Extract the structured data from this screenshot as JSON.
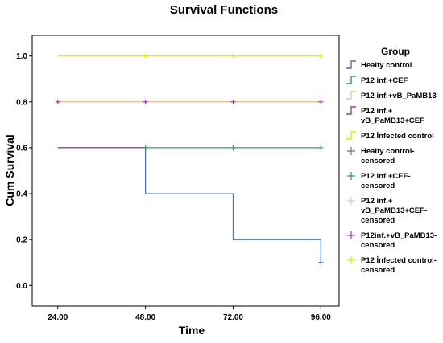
{
  "chart_data": {
    "type": "line",
    "title": "Survival Functions",
    "xlabel": "Time",
    "ylabel": "Cum Survival",
    "xlim": [
      17,
      101
    ],
    "ylim": [
      -0.09,
      1.09
    ],
    "x_ticks": [
      "24.00",
      "48.00",
      "72.00",
      "96.00"
    ],
    "x_tick_values": [
      24,
      48,
      72,
      96
    ],
    "y_ticks": [
      "0.0",
      "0.2",
      "0.4",
      "0.6",
      "0.8",
      "1.0"
    ],
    "y_tick_values": [
      0,
      0.2,
      0.4,
      0.6,
      0.8,
      1.0
    ],
    "grid": false,
    "legend_title": "Group",
    "legend_position": "right",
    "series": [
      {
        "name": "Healty control",
        "color": "#4472c4",
        "step": true,
        "x": [
          24,
          48,
          48,
          72,
          72,
          96,
          96
        ],
        "y": [
          0.6,
          0.6,
          0.4,
          0.4,
          0.2,
          0.2,
          0.1
        ],
        "censored_x": [
          96
        ],
        "censored_y": [
          0.1
        ]
      },
      {
        "name": "P12 inf.+CEF",
        "color": "#2ca05a",
        "step": true,
        "x": [
          24,
          96
        ],
        "y": [
          0.6,
          0.6
        ],
        "censored_x": [
          48,
          72,
          96
        ],
        "censored_y": [
          0.6,
          0.6,
          0.6
        ]
      },
      {
        "name": "P12 inf.+vB_PaMB13",
        "color": "#f4c39a",
        "step": true,
        "x": [
          24,
          96
        ],
        "y": [
          0.8,
          0.8
        ],
        "censored_x": [],
        "censored_y": []
      },
      {
        "name": "P12 inf.+\nvB_PaMB13+CEF",
        "color": "#9b3ea8",
        "step": true,
        "x": [
          24,
          48
        ],
        "y": [
          0.6,
          0.6
        ],
        "censored_x": [
          24,
          48,
          72,
          96
        ],
        "censored_y": [
          0.8,
          0.8,
          0.8,
          0.8
        ]
      },
      {
        "name": "P12 İnfected control",
        "color": "#f2e600",
        "step": true,
        "x": [
          24,
          96
        ],
        "y": [
          1.0,
          1.0
        ],
        "censored_x": [
          48,
          72,
          96
        ],
        "censored_y": [
          1.0,
          1.0,
          1.0
        ]
      }
    ],
    "extra_lines": [
      {
        "color": "#8aa23a",
        "x": [
          24,
          96
        ],
        "y": [
          0.8,
          0.8
        ]
      }
    ],
    "legend": [
      {
        "label": "Healty control",
        "color": "#4472c4",
        "symbol": "step"
      },
      {
        "label": "P12 inf.+CEF",
        "color": "#2ca05a",
        "symbol": "step"
      },
      {
        "label": "P12 inf.+vB_PaMB13",
        "color": "#f4c39a",
        "symbol": "step"
      },
      {
        "label": "P12 inf.+\nvB_PaMB13+CEF",
        "color": "#9b3ea8",
        "symbol": "step"
      },
      {
        "label": "P12 İnfected control",
        "color": "#f2e600",
        "symbol": "step"
      },
      {
        "label": "Healty control-\ncensored",
        "color": "#4472c4",
        "symbol": "plus"
      },
      {
        "label": "P12 inf.+CEF-\ncensored",
        "color": "#2ca05a",
        "symbol": "plus"
      },
      {
        "label": "P12 inf.+\nvB_PaMB13+CEF-\ncensored",
        "color": "#f4c39a",
        "symbol": "plus"
      },
      {
        "label": "P12inf.+vB_PaMB13-\ncensored",
        "color": "#9b3ea8",
        "symbol": "plus"
      },
      {
        "label": "P12 İnfected control-\ncensored",
        "color": "#f2e600",
        "symbol": "plus"
      }
    ]
  }
}
